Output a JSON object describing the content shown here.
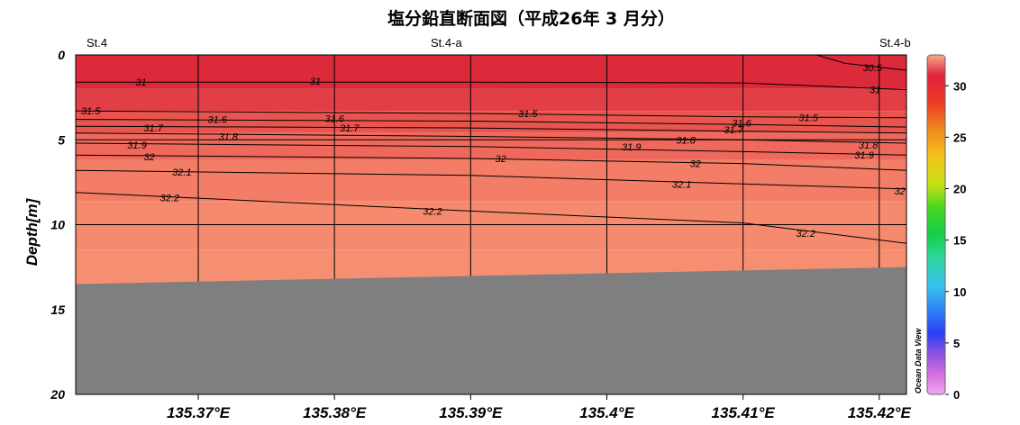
{
  "title": "塩分鉛直断面図（平成26年 3 月分）",
  "stations": [
    "St.4",
    "St.4-a",
    "St.4-b"
  ],
  "watermark": "Ocean Data View",
  "colors": {
    "seabed": "#7f7f7f",
    "colorbar_top": "#f6aa88"
  },
  "chart_data": {
    "type": "heatmap",
    "title": "塩分鉛直断面図（平成26年 3 月分）",
    "xlabel": "",
    "ylabel": "Depth[m]",
    "x_range": [
      135.361,
      135.422
    ],
    "ylim": [
      0,
      20
    ],
    "y_inverted": true,
    "x_ticks": [
      135.37,
      135.38,
      135.39,
      135.4,
      135.41,
      135.42
    ],
    "x_tick_labels": [
      "135.37°E",
      "135.38°E",
      "135.39°E",
      "135.4°E",
      "135.41°E",
      "135.42°E"
    ],
    "y_ticks": [
      0,
      5,
      10,
      15,
      20
    ],
    "y_tick_labels": [
      "0",
      "5",
      "10",
      "15",
      "20"
    ],
    "colorbar": {
      "min": 0,
      "max": 33,
      "ticks": [
        0,
        5,
        10,
        15,
        20,
        25,
        30
      ]
    },
    "grid": true,
    "bottom": [
      [
        135.361,
        13.5
      ],
      [
        135.422,
        12.5
      ]
    ],
    "fill_bands": [
      {
        "from": 0,
        "to": 2,
        "color": "#dc2a3a"
      },
      {
        "from": 2,
        "to": 3.3,
        "color": "#e23e45"
      },
      {
        "from": 3.3,
        "to": 4.6,
        "color": "#e8554f"
      },
      {
        "from": 4.6,
        "to": 6.2,
        "color": "#ee695b"
      },
      {
        "from": 6.2,
        "to": 8.6,
        "color": "#f37d66"
      },
      {
        "from": 8.6,
        "to": 11.5,
        "color": "#f68a6e"
      },
      {
        "from": 11.5,
        "to": 14,
        "color": "#f68f72"
      }
    ],
    "contours": [
      {
        "value": 30.5,
        "points": [
          [
            135.4154,
            0.0
          ],
          [
            135.4175,
            0.5
          ],
          [
            135.422,
            0.9
          ]
        ],
        "labels": [
          {
            "text": "30.5",
            "x": 135.4195,
            "y": 0.75
          }
        ]
      },
      {
        "value": 31,
        "points": [
          [
            135.361,
            1.6
          ],
          [
            135.39,
            1.6
          ],
          [
            135.41,
            1.65
          ],
          [
            135.422,
            2.05
          ]
        ],
        "labels": [
          {
            "text": "31",
            "x": 135.3658,
            "y": 1.6
          },
          {
            "text": "31",
            "x": 135.3786,
            "y": 1.55
          },
          {
            "text": "31",
            "x": 135.4197,
            "y": 2.05
          }
        ]
      },
      {
        "value": 31.5,
        "points": [
          [
            135.361,
            3.3
          ],
          [
            135.39,
            3.45
          ],
          [
            135.41,
            3.65
          ],
          [
            135.422,
            3.7
          ]
        ],
        "labels": [
          {
            "text": "31.5",
            "x": 135.3621,
            "y": 3.3
          },
          {
            "text": "31.5",
            "x": 135.3942,
            "y": 3.45
          },
          {
            "text": "31.5",
            "x": 135.4148,
            "y": 3.7
          }
        ]
      },
      {
        "value": 31.6,
        "points": [
          [
            135.361,
            3.8
          ],
          [
            135.39,
            3.9
          ],
          [
            135.41,
            4.1
          ],
          [
            135.422,
            4.25
          ]
        ],
        "labels": [
          {
            "text": "31.6",
            "x": 135.3714,
            "y": 3.8
          },
          {
            "text": "31.6",
            "x": 135.38,
            "y": 3.75
          },
          {
            "text": "31.6",
            "x": 135.4099,
            "y": 4.0
          }
        ]
      },
      {
        "value": 31.7,
        "points": [
          [
            135.361,
            4.2
          ],
          [
            135.39,
            4.3
          ],
          [
            135.41,
            4.5
          ],
          [
            135.422,
            4.6
          ]
        ],
        "labels": [
          {
            "text": "31.7",
            "x": 135.3667,
            "y": 4.3
          },
          {
            "text": "31.7",
            "x": 135.3811,
            "y": 4.3
          },
          {
            "text": "31.7",
            "x": 135.4093,
            "y": 4.4
          }
        ]
      },
      {
        "value": 31.8,
        "points": [
          [
            135.361,
            4.6
          ],
          [
            135.39,
            4.8
          ],
          [
            135.41,
            5.0
          ],
          [
            135.422,
            5.2
          ]
        ],
        "labels": [
          {
            "text": "31.8",
            "x": 135.3722,
            "y": 4.8
          },
          {
            "text": "31.8",
            "x": 135.4058,
            "y": 5.0
          },
          {
            "text": "31.8",
            "x": 135.4192,
            "y": 5.3
          }
        ]
      },
      {
        "value": 31.9,
        "points": [
          [
            135.361,
            5.2
          ],
          [
            135.39,
            5.4
          ],
          [
            135.41,
            5.7
          ],
          [
            135.422,
            5.9
          ]
        ],
        "labels": [
          {
            "text": "31.9",
            "x": 135.3655,
            "y": 5.3
          },
          {
            "text": "31.9",
            "x": 135.4018,
            "y": 5.4
          },
          {
            "text": "31.9",
            "x": 135.4189,
            "y": 5.9
          }
        ]
      },
      {
        "value": 32,
        "points": [
          [
            135.361,
            5.9
          ],
          [
            135.39,
            6.1
          ],
          [
            135.41,
            6.4
          ],
          [
            135.422,
            6.8
          ]
        ],
        "labels": [
          {
            "text": "32",
            "x": 135.3664,
            "y": 6.0
          },
          {
            "text": "32",
            "x": 135.3922,
            "y": 6.1
          },
          {
            "text": "32",
            "x": 135.4065,
            "y": 6.4
          }
        ]
      },
      {
        "value": 32.1,
        "points": [
          [
            135.361,
            6.8
          ],
          [
            135.39,
            7.1
          ],
          [
            135.41,
            7.6
          ],
          [
            135.422,
            7.9
          ]
        ],
        "labels": [
          {
            "text": "32.1",
            "x": 135.3688,
            "y": 6.9
          },
          {
            "text": "32.1",
            "x": 135.4055,
            "y": 7.6
          },
          {
            "text": "32",
            "x": 135.4215,
            "y": 8.0
          }
        ]
      },
      {
        "value": 32.2,
        "points": [
          [
            135.361,
            8.1
          ],
          [
            135.39,
            9.2
          ],
          [
            135.41,
            9.9
          ],
          [
            135.422,
            11.1
          ]
        ],
        "labels": [
          {
            "text": "32.2",
            "x": 135.3679,
            "y": 8.4
          },
          {
            "text": "32.2",
            "x": 135.3872,
            "y": 9.2
          },
          {
            "text": "32.2",
            "x": 135.4146,
            "y": 10.5
          }
        ]
      }
    ]
  }
}
